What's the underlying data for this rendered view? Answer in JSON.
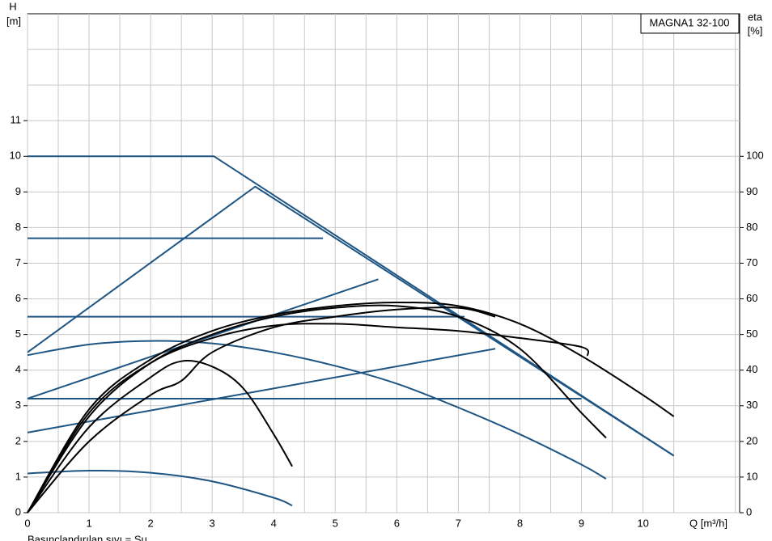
{
  "chart_data": {
    "type": "line",
    "title": "MAGNA1 32-100",
    "y_label_symbol": "H",
    "y_label_unit": "[m]",
    "y2_label_symbol": "eta",
    "y2_label_unit": "[%]",
    "x_label": "Q [m³/h]",
    "footnote": "Basınçlandırılan sıvı = Su",
    "xlim": [
      0,
      11.57
    ],
    "ylim": [
      0,
      14
    ],
    "y2lim": [
      0,
      140
    ],
    "xticks": [
      0,
      1,
      2,
      3,
      4,
      5,
      6,
      7,
      8,
      9,
      10
    ],
    "yticks": [
      0,
      1,
      2,
      3,
      4,
      5,
      6,
      7,
      8,
      9,
      10,
      11
    ],
    "y2ticks": [
      0,
      10,
      20,
      30,
      40,
      50,
      60,
      70,
      80,
      90,
      100
    ],
    "grid": true,
    "series": [
      {
        "color": "#1f5583",
        "smooth": false,
        "x": [
          0,
          3.03,
          10.5
        ],
        "values": [
          10,
          10,
          1.6
        ]
      },
      {
        "color": "#1f5583",
        "smooth": false,
        "x": [
          0,
          3.7,
          10.5
        ],
        "values": [
          4.5,
          9.15,
          1.6
        ]
      },
      {
        "color": "#1f5583",
        "smooth": false,
        "x": [
          0,
          5.7
        ],
        "values": [
          3.2,
          6.55
        ]
      },
      {
        "color": "#1f5583",
        "smooth": false,
        "x": [
          0,
          7.6
        ],
        "values": [
          2.25,
          4.6
        ]
      },
      {
        "color": "#1f5583",
        "smooth": false,
        "x": [
          0,
          4.8
        ],
        "values": [
          7.7,
          7.7
        ]
      },
      {
        "color": "#1f5583",
        "smooth": false,
        "x": [
          0,
          7.1
        ],
        "values": [
          5.5,
          5.5
        ]
      },
      {
        "color": "#1f5583",
        "smooth": false,
        "x": [
          0,
          9
        ],
        "values": [
          3.2,
          3.2
        ]
      },
      {
        "color": "#1f5583",
        "smooth": true,
        "x": [
          0,
          1,
          2,
          3,
          4,
          5,
          6,
          7,
          8,
          9,
          9.4
        ],
        "values": [
          4.42,
          4.72,
          4.82,
          4.75,
          4.5,
          4.12,
          3.62,
          2.95,
          2.2,
          1.35,
          0.95
        ]
      },
      {
        "color": "#1f5583",
        "smooth": true,
        "x": [
          0,
          1,
          2,
          3,
          4,
          4.3
        ],
        "values": [
          1.1,
          1.18,
          1.12,
          0.88,
          0.42,
          0.2
        ]
      },
      {
        "color": "#000000",
        "smooth": true,
        "axis": "y2",
        "x": [
          0,
          1,
          2,
          3,
          4,
          5,
          6,
          7,
          8,
          9,
          10,
          10.5
        ],
        "values": [
          0,
          29,
          43,
          51,
          55.5,
          58,
          59,
          58,
          53,
          44,
          33,
          27
        ]
      },
      {
        "color": "#000000",
        "smooth": true,
        "axis": "y2",
        "x": [
          0,
          1,
          2,
          3,
          4,
          5,
          6,
          7,
          8,
          9,
          9.4
        ],
        "values": [
          0,
          27,
          42,
          50,
          55,
          57.5,
          58,
          55,
          46,
          28,
          21
        ]
      },
      {
        "color": "#000000",
        "smooth": true,
        "axis": "y2",
        "x": [
          0,
          1,
          2,
          2.5,
          3,
          3.5,
          4,
          4.3
        ],
        "values": [
          0,
          24,
          38,
          42.5,
          41,
          35,
          22,
          13
        ]
      },
      {
        "color": "#000000",
        "smooth": true,
        "axis": "y2",
        "x": [
          0,
          1,
          2,
          3,
          4,
          5,
          6,
          7,
          8,
          9,
          9.1
        ],
        "values": [
          0,
          28,
          42,
          49,
          52.5,
          53,
          52,
          51,
          49,
          46.5,
          44
        ]
      },
      {
        "color": "#000000",
        "smooth": true,
        "axis": "y2",
        "x": [
          0,
          1,
          2,
          2.5,
          3,
          4,
          5,
          6,
          7,
          7.6
        ],
        "values": [
          0,
          20,
          33,
          37,
          45,
          52,
          55,
          57,
          57.5,
          55
        ]
      }
    ]
  }
}
